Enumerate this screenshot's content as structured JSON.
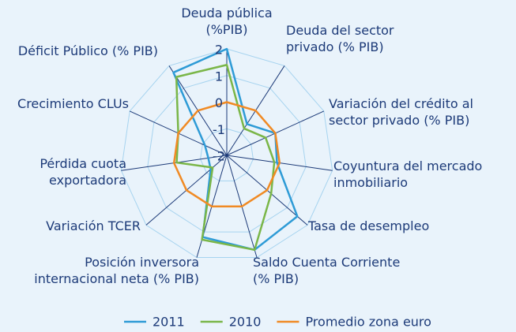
{
  "chart_data": {
    "type": "radar",
    "categories": [
      "Deuda pública (%PIB)",
      "Deuda del sector privado (% PIB)",
      "Variación del crédito al sector privado (% PIB)",
      "Coyuntura del mercado inmobiliario",
      "Tasa de desempleo",
      "Saldo Cuenta Corriente (% PIB)",
      "Posición inversora internacional neta (% PIB)",
      "Variación TCER",
      "Pérdida cuota exportadora",
      "Crecimiento CLUs",
      "Déficit Público (% PIB)"
    ],
    "series": [
      {
        "name": "2011",
        "color": "#2e9bd6",
        "values": [
          2,
          -0.6,
          0,
          -0.1,
          1.5,
          1.7,
          1.2,
          -1.2,
          -1.3,
          -1.1,
          1.7
        ]
      },
      {
        "name": "2010",
        "color": "#7ab648",
        "values": [
          1.4,
          -0.8,
          -0.4,
          -0.2,
          0.2,
          1.7,
          1.3,
          -1.3,
          -0.1,
          0,
          1.5
        ]
      },
      {
        "name": "Promedio zona euro",
        "color": "#f08a24",
        "values": [
          0,
          0,
          0,
          0,
          0,
          0,
          0,
          0,
          0,
          0,
          0
        ]
      }
    ],
    "ylim": [
      -2,
      2
    ],
    "yticks": [
      -2,
      -1,
      0,
      1,
      2
    ],
    "grid": true,
    "legend": "bottom"
  }
}
